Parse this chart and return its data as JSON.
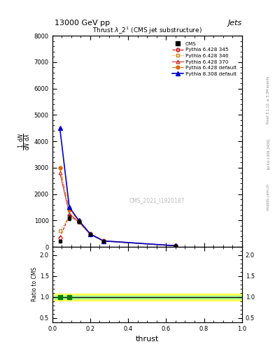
{
  "title_top": "13000 GeV pp",
  "title_right": "Jets",
  "plot_title": "Thrust $\\lambda\\_2^1$ (CMS jet substructure)",
  "xlabel": "thrust",
  "watermark": "CMS_2021_I1920187",
  "rivet_text": "Rivet 3.1.10, ≥ 3.3M events",
  "arxiv_text": "[arXiv:1306.3436]",
  "mcplots_text": "mcplots.cern.ch",
  "x_data": [
    0.04,
    0.09,
    0.14,
    0.2,
    0.27,
    0.65
  ],
  "cms_y": [
    200,
    1100,
    950,
    480,
    220,
    40
  ],
  "cms_yerr": [
    20,
    80,
    60,
    30,
    15,
    5
  ],
  "p6_345_y": [
    350,
    1200,
    950,
    480,
    220,
    40
  ],
  "p6_346_y": [
    600,
    1150,
    920,
    460,
    210,
    38
  ],
  "p6_370_y": [
    2800,
    1250,
    950,
    480,
    220,
    40
  ],
  "p6_default_y": [
    3000,
    1400,
    1000,
    500,
    230,
    42
  ],
  "p8_default_y": [
    4500,
    1500,
    1000,
    490,
    225,
    41
  ],
  "colors": {
    "cms": "#000000",
    "p6_345": "#cc0000",
    "p6_346": "#cc8800",
    "p6_370": "#cc3333",
    "p6_default": "#dd6600",
    "p8_default": "#0000cc"
  },
  "ylim_main": [
    0,
    8000
  ],
  "ylim_ratio": [
    0.4,
    2.2
  ],
  "yticks_main": [
    0,
    1000,
    2000,
    3000,
    4000,
    5000,
    6000,
    7000,
    8000
  ],
  "yticks_ratio": [
    0.5,
    1.0,
    1.5,
    2.0
  ],
  "xlim": [
    0,
    1.0
  ],
  "background_color": "#ffffff"
}
